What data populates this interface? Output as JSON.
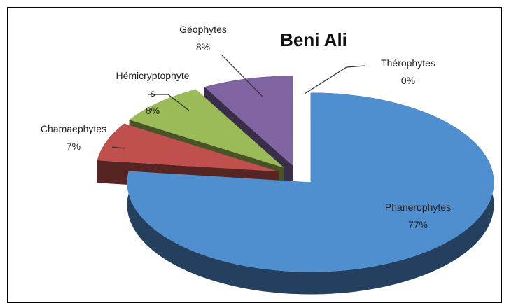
{
  "chart_data": {
    "type": "pie",
    "title": "Beni Ali",
    "categories": [
      "Thérophytes",
      "Phanerophytes",
      "Chamaephytes",
      "Hémicryptophytes",
      "Géophytes"
    ],
    "values": [
      0,
      77,
      7,
      8,
      8
    ],
    "value_labels": [
      "0%",
      "77%",
      "7%",
      "8%",
      "8%"
    ],
    "colors": [
      "#4bacc6",
      "#4f8fd0",
      "#c0504d",
      "#9bbb59",
      "#8064a2"
    ]
  }
}
